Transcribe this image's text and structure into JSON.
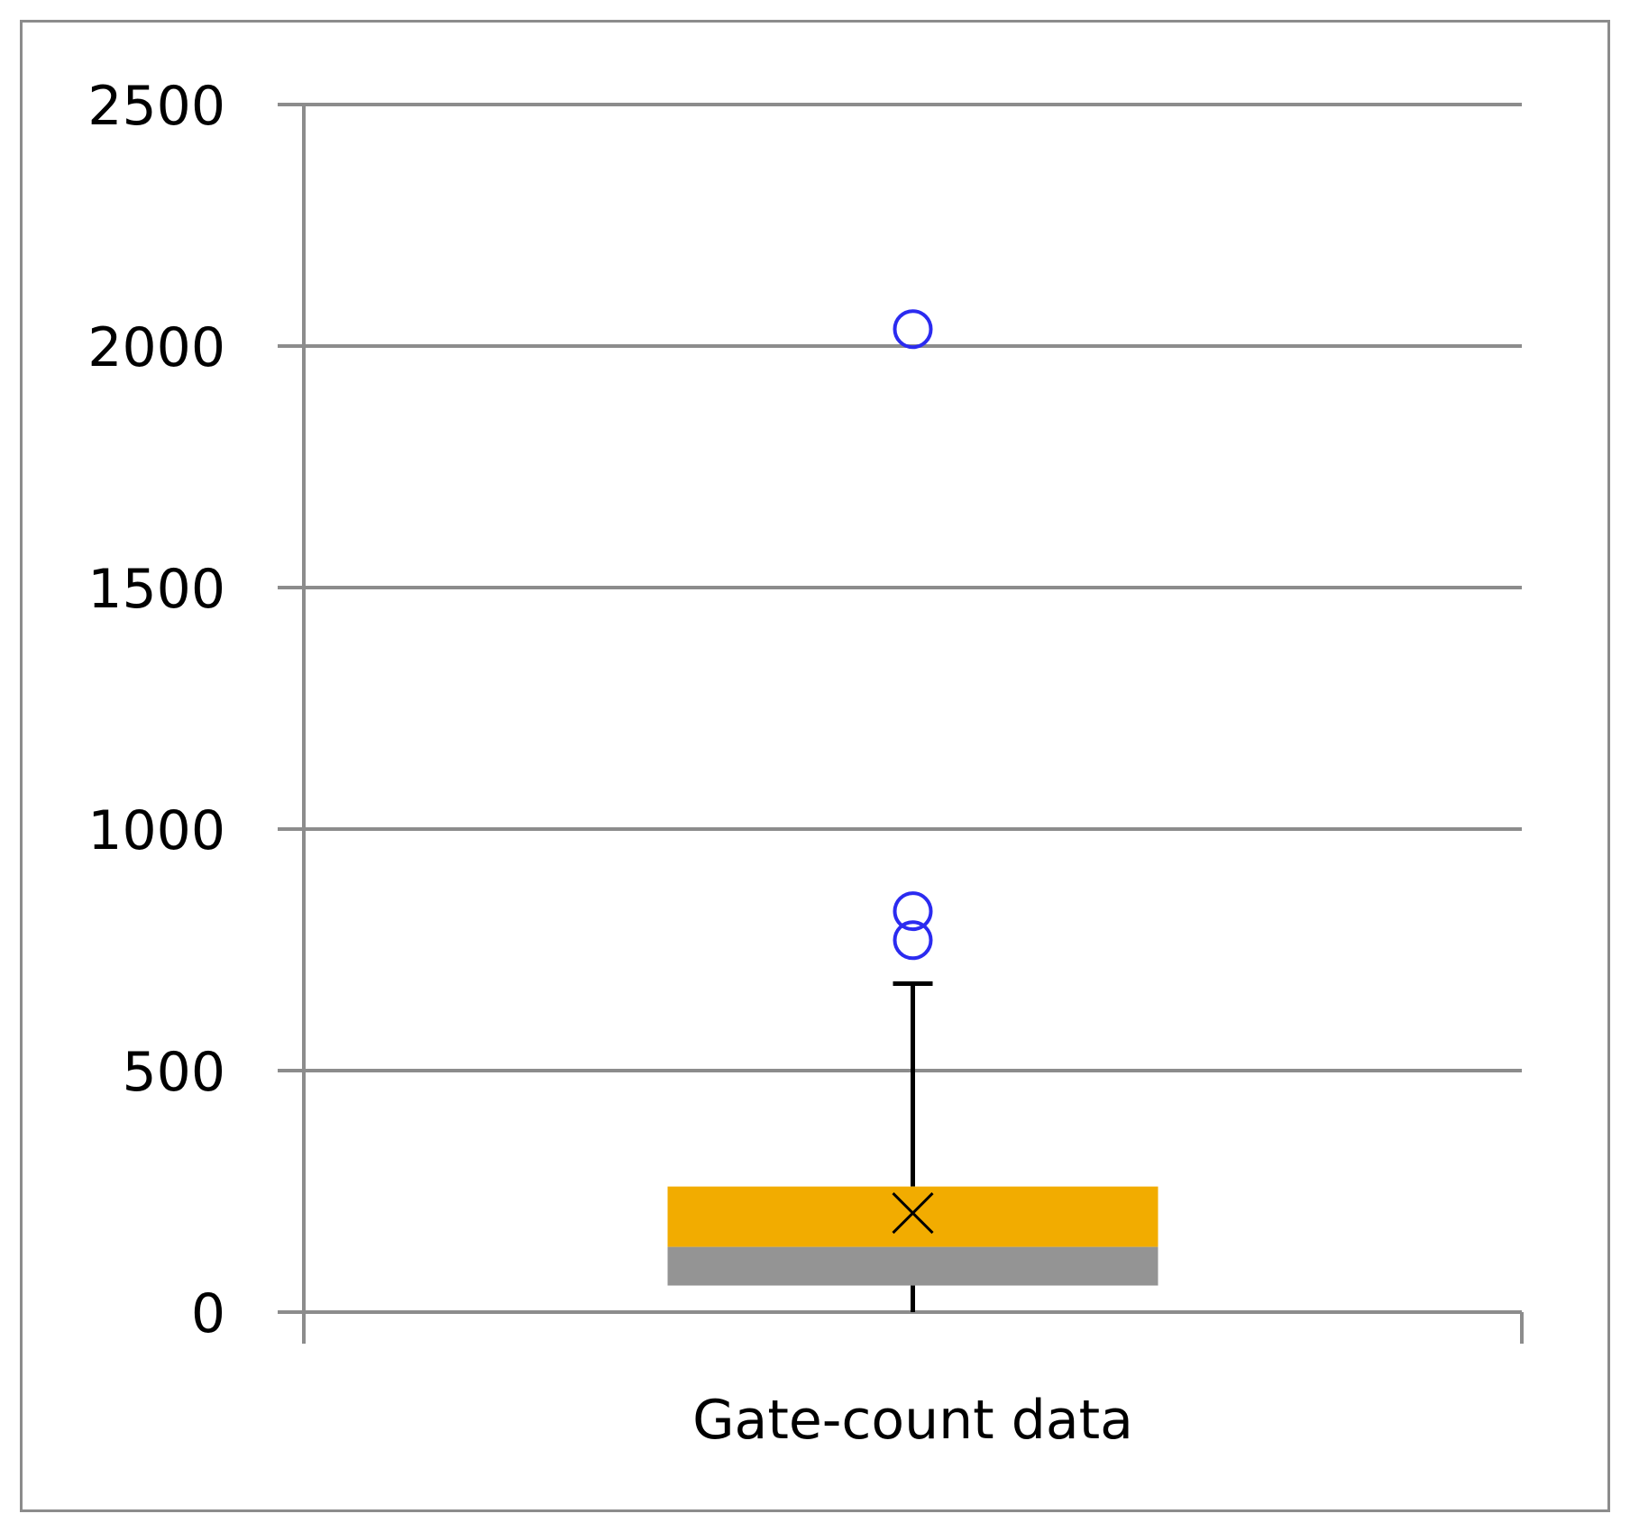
{
  "chart_data": {
    "type": "box",
    "categories": [
      "Gate-count data"
    ],
    "y_ticks": [
      "0",
      "500",
      "1000",
      "1500",
      "2000",
      "2500"
    ],
    "ylim": [
      0,
      2500
    ],
    "grid": true,
    "series": [
      {
        "category": "Gate-count data",
        "min": 0,
        "q1": 55,
        "median": 135,
        "q3": 260,
        "max": 680,
        "mean": 205,
        "outliers": [
          770,
          830,
          2035
        ]
      }
    ],
    "colors": {
      "upper_box": "#F2AC00",
      "lower_box": "#949494",
      "outlier": "#2B2BF0",
      "whisker": "#000000",
      "grid": "#8c8c8c",
      "frame": "#8c8c8c"
    }
  }
}
